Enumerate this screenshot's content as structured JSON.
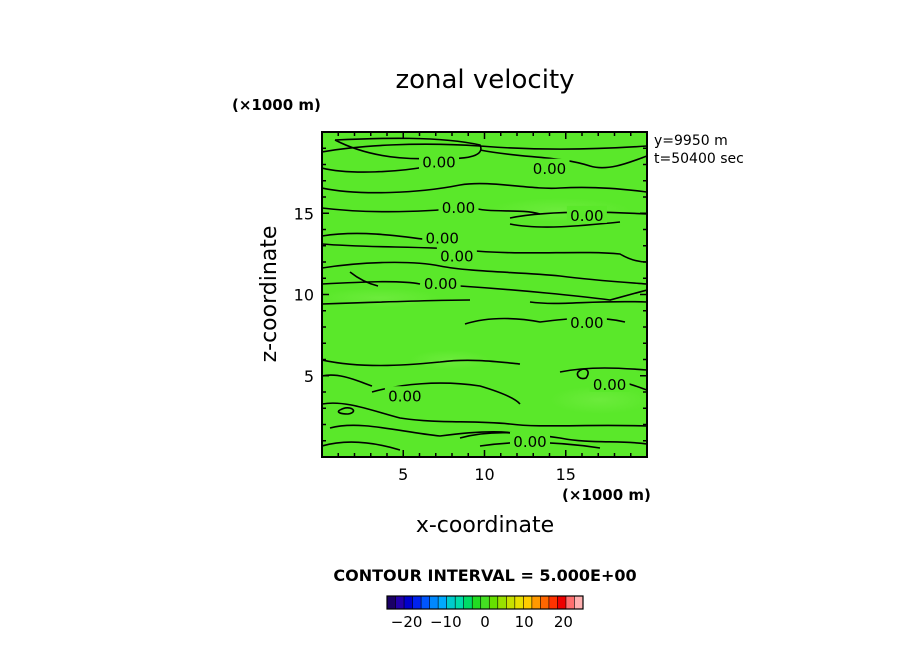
{
  "chart_data": {
    "type": "heatmap",
    "title": "zonal velocity",
    "xlabel": "x-coordinate",
    "ylabel": "z-coordinate",
    "x_unit": "(×1000 m)",
    "y_unit": "(×1000 m)",
    "xlim": [
      0,
      20
    ],
    "ylim": [
      0,
      20
    ],
    "x_ticks": [
      5,
      10,
      15
    ],
    "y_ticks": [
      5,
      10,
      15
    ],
    "info_lines": [
      "y=9950  m",
      "t=50400 sec"
    ],
    "contour_interval_text": "CONTOUR INTERVAL = 5.000E+00",
    "field_value": 0.0,
    "contour_labels": [
      {
        "text": "0.00",
        "x": 7.2,
        "z": 18.2
      },
      {
        "text": "0.00",
        "x": 14.0,
        "z": 17.8
      },
      {
        "text": "0.00",
        "x": 8.4,
        "z": 15.4
      },
      {
        "text": "0.00",
        "x": 16.3,
        "z": 14.9
      },
      {
        "text": "0.00",
        "x": 7.4,
        "z": 13.5
      },
      {
        "text": "0.00",
        "x": 8.3,
        "z": 12.4
      },
      {
        "text": "0.00",
        "x": 7.3,
        "z": 10.7
      },
      {
        "text": "0.00",
        "x": 16.3,
        "z": 8.3
      },
      {
        "text": "0.00",
        "x": 17.7,
        "z": 4.5
      },
      {
        "text": "0.00",
        "x": 5.1,
        "z": 3.8
      },
      {
        "text": "0.00",
        "x": 12.8,
        "z": 1.0
      }
    ],
    "colorbar": {
      "min": -25,
      "max": 25,
      "tick_labels": [
        "−20",
        "−10",
        "0",
        "10",
        "20"
      ],
      "tick_values": [
        -20,
        -10,
        0,
        10,
        20
      ],
      "colors": [
        "#1a0066",
        "#2200aa",
        "#0000cc",
        "#0022ee",
        "#0055ff",
        "#0088ff",
        "#00aaff",
        "#00cccc",
        "#00ddaa",
        "#00dd66",
        "#22dd22",
        "#44e022",
        "#66e000",
        "#99e000",
        "#c8e000",
        "#e8e000",
        "#ffcc00",
        "#ff9900",
        "#ff6600",
        "#ff3300",
        "#ee0000",
        "#ff6f6f",
        "#ffb0b0"
      ]
    },
    "field_color": "#5ae82a"
  }
}
